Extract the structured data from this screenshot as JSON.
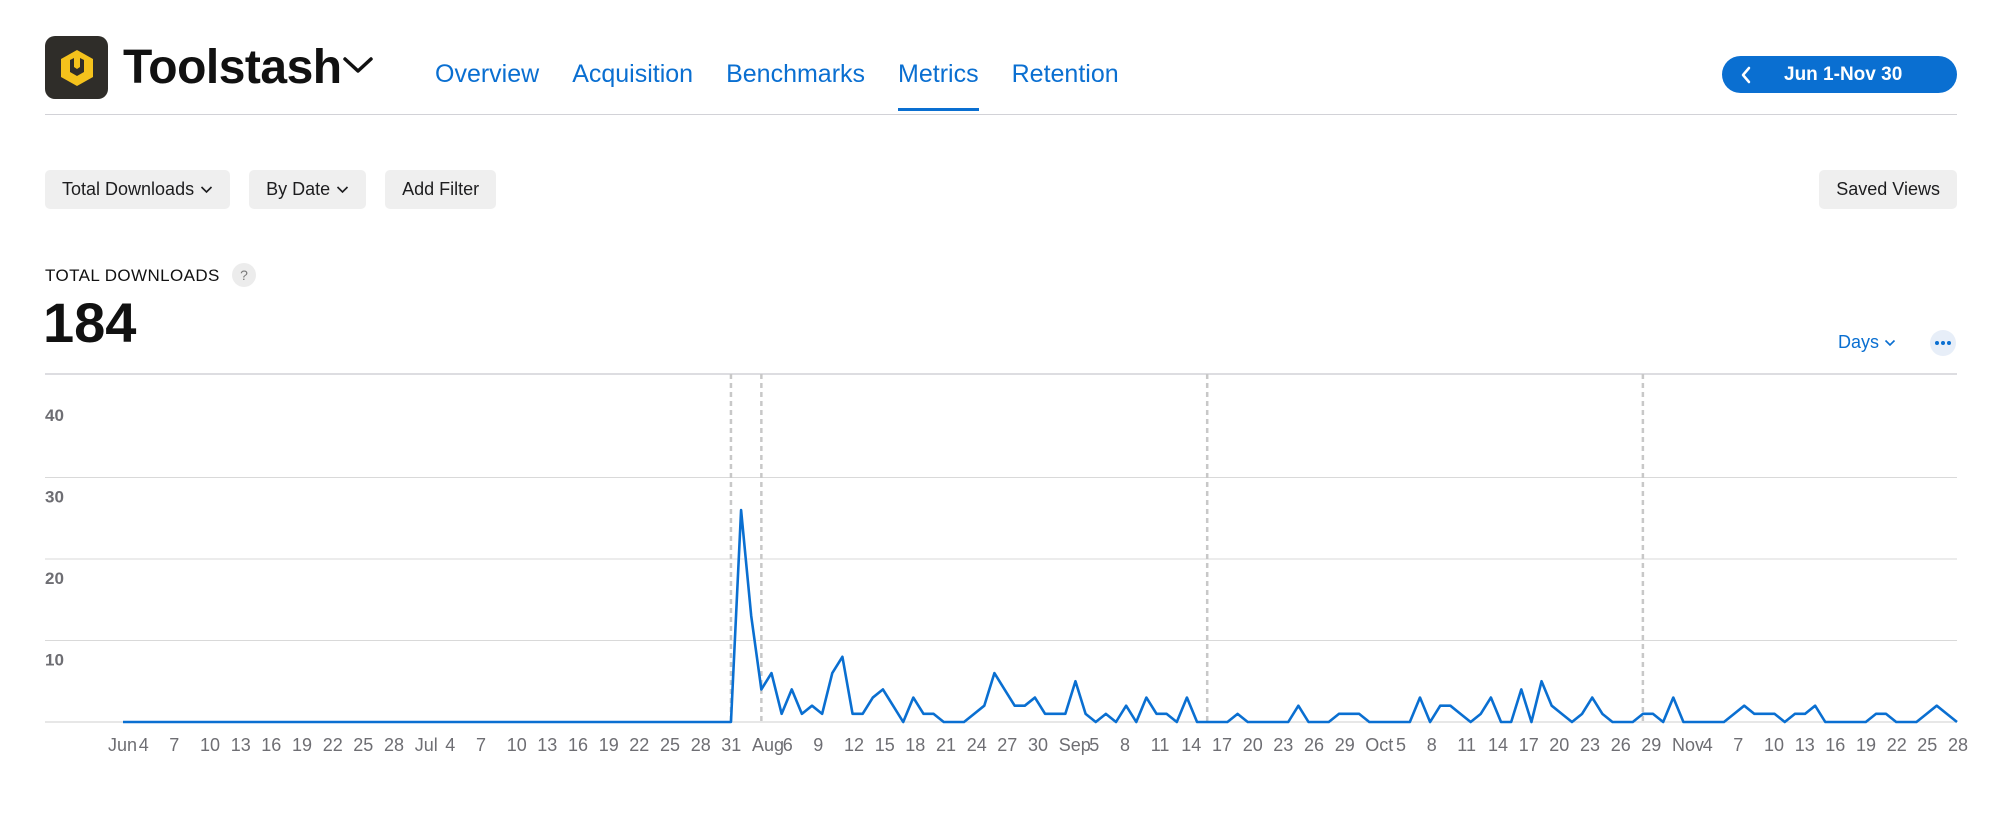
{
  "app": {
    "name": "Toolstash",
    "icon": "toolstash-app-icon",
    "brand_color": "#f4c21c",
    "icon_bg": "#2f2d29"
  },
  "nav": {
    "tabs": [
      {
        "label": "Overview",
        "active": false
      },
      {
        "label": "Acquisition",
        "active": false
      },
      {
        "label": "Benchmarks",
        "active": false
      },
      {
        "label": "Metrics",
        "active": true
      },
      {
        "label": "Retention",
        "active": false
      }
    ],
    "accent": "#0a6fd1"
  },
  "date_range": {
    "label": "Jun 1-Nov 30",
    "icon": "chevron-left-icon"
  },
  "filters": {
    "measure": "Total Downloads",
    "group_by": "By Date",
    "add_filter": "Add Filter",
    "saved_views": "Saved Views"
  },
  "metric": {
    "label": "TOTAL DOWNLOADS",
    "help": "?",
    "value": "184"
  },
  "controls": {
    "granularity": "Days",
    "more_icon": "more-icon"
  },
  "chart_data": {
    "type": "line",
    "series": [
      {
        "color": "#0a6fd1",
        "values": [
          0,
          0,
          0,
          0,
          0,
          0,
          0,
          0,
          0,
          0,
          0,
          0,
          0,
          0,
          0,
          0,
          0,
          0,
          0,
          0,
          0,
          0,
          0,
          0,
          0,
          0,
          0,
          0,
          0,
          0,
          0,
          0,
          0,
          0,
          0,
          0,
          0,
          0,
          0,
          0,
          0,
          0,
          0,
          0,
          0,
          0,
          0,
          0,
          0,
          0,
          0,
          0,
          0,
          0,
          0,
          0,
          0,
          0,
          0,
          0,
          0,
          26,
          13,
          4,
          6,
          1,
          4,
          1,
          2,
          1,
          6,
          8,
          1,
          1,
          3,
          4,
          2,
          0,
          3,
          1,
          1,
          0,
          0,
          0,
          1,
          2,
          6,
          4,
          2,
          2,
          3,
          1,
          1,
          1,
          5,
          1,
          0,
          1,
          0,
          2,
          0,
          3,
          1,
          1,
          0,
          3,
          0,
          0,
          0,
          0,
          1,
          0,
          0,
          0,
          0,
          0,
          2,
          0,
          0,
          0,
          1,
          1,
          1,
          0,
          0,
          0,
          0,
          0,
          3,
          0,
          2,
          2,
          1,
          0,
          1,
          3,
          0,
          0,
          4,
          0,
          5,
          2,
          1,
          0,
          1,
          3,
          1,
          0,
          0,
          0,
          1,
          1,
          0,
          3,
          0,
          0,
          0,
          0,
          0,
          1,
          2,
          1,
          1,
          1,
          0,
          1,
          1,
          2,
          0,
          0,
          0,
          0,
          0,
          1,
          1,
          0,
          0,
          0,
          1,
          2,
          1,
          0
        ]
      }
    ],
    "x_start": "Jun 1",
    "x_end": "Nov 30",
    "x_tick_labels": [
      "Jun",
      "4",
      "7",
      "10",
      "13",
      "16",
      "19",
      "22",
      "25",
      "28",
      "Jul",
      "4",
      "7",
      "10",
      "13",
      "16",
      "19",
      "22",
      "25",
      "28",
      "31",
      "Aug",
      "6",
      "9",
      "12",
      "15",
      "18",
      "21",
      "24",
      "27",
      "30",
      "Sep",
      "5",
      "8",
      "11",
      "14",
      "17",
      "20",
      "23",
      "26",
      "29",
      "Oct",
      "5",
      "8",
      "11",
      "14",
      "17",
      "20",
      "23",
      "26",
      "29",
      "Nov",
      "4",
      "7",
      "10",
      "13",
      "16",
      "19",
      "22",
      "25",
      "28"
    ],
    "y_ticks": [
      "10",
      "20",
      "30",
      "40"
    ],
    "ylim": [
      0,
      40
    ],
    "grid": true,
    "dashed_markers": [
      "Jul 31",
      "Aug 3",
      "Sep 16",
      "Oct 29"
    ]
  }
}
